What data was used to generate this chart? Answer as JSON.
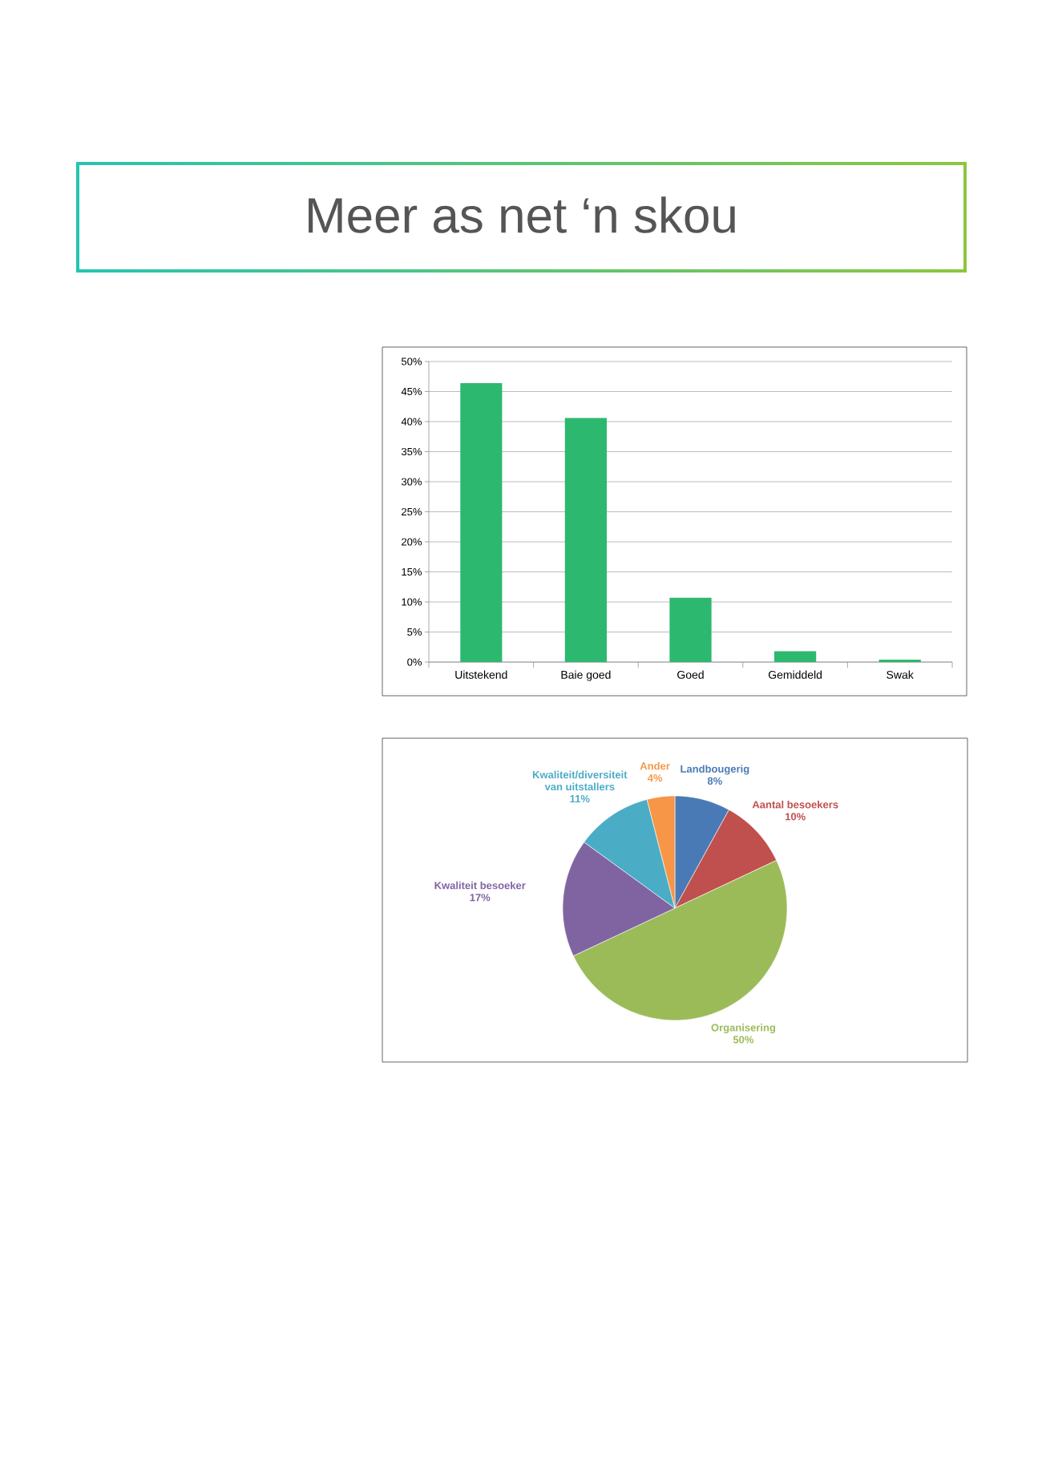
{
  "chart_data": [
    {
      "type": "bar",
      "title": "Meer as net ‘n skou",
      "categories": [
        "Uitstekend",
        "Baie goed",
        "Goed",
        "Gemiddeld",
        "Swak"
      ],
      "values": [
        46.4,
        40.6,
        10.7,
        1.8,
        0.4
      ],
      "color": "#2db86f",
      "ylim": [
        0,
        50
      ],
      "yticks": [
        {
          "value": 0,
          "label": "0%"
        },
        {
          "value": 5,
          "label": "5%"
        },
        {
          "value": 10,
          "label": "10%"
        },
        {
          "value": 15,
          "label": "15%"
        },
        {
          "value": 20,
          "label": "20%"
        },
        {
          "value": 25,
          "label": "25%"
        },
        {
          "value": 30,
          "label": "30%"
        },
        {
          "value": 35,
          "label": "35%"
        },
        {
          "value": 40,
          "label": "40%"
        },
        {
          "value": 45,
          "label": "45%"
        },
        {
          "value": 50,
          "label": "50%"
        }
      ],
      "grid": "y"
    },
    {
      "type": "pie",
      "categories": [
        "Landbougerig",
        "Aantal besoekers",
        "Organisering",
        "Kwaliteit besoeker",
        "Kwaliteit/diversiteit van uitstallers",
        "Ander"
      ],
      "values": [
        8,
        10,
        50,
        17,
        11,
        4
      ],
      "colors": [
        "#4a7ab6",
        "#c0504d",
        "#9bbb59",
        "#8064a2",
        "#4bacc6",
        "#f79646"
      ],
      "value_labels": [
        "8%",
        "10%",
        "50%",
        "17%",
        "11%",
        "4%"
      ]
    }
  ]
}
